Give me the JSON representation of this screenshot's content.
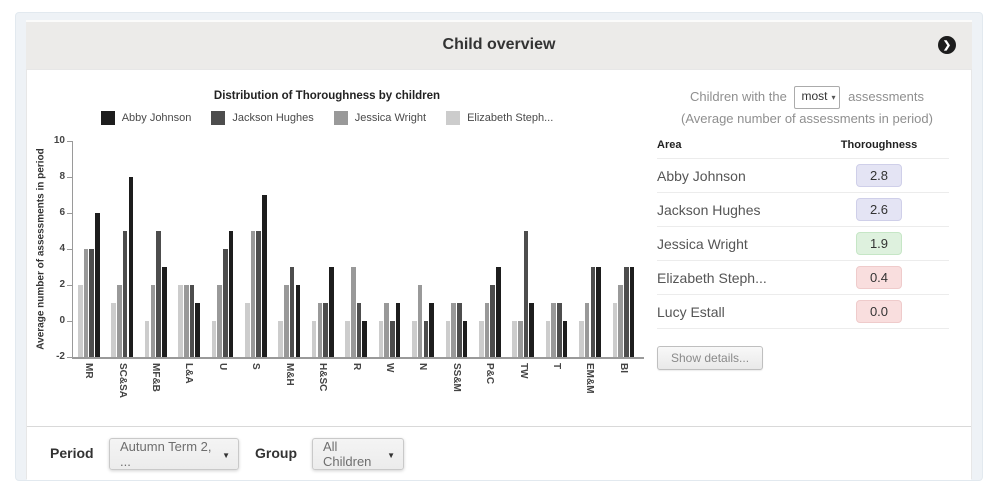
{
  "header": {
    "title": "Child overview",
    "nav_icon": "chevron-right-circle"
  },
  "chart_data": {
    "type": "bar",
    "title": "Distribution of Thoroughness by children",
    "ylabel": "Average number of assessments in period",
    "ylim": [
      -2,
      10
    ],
    "yticks": [
      -2,
      0,
      2,
      4,
      6,
      8,
      10
    ],
    "grid": false,
    "legend_position": "top",
    "bar_order_note": "bars drawn lightest-to-darkest left-to-right within each group; bars rise from chart bottom (-2)",
    "categories": [
      "MR",
      "SC&SA",
      "MF&B",
      "L&A",
      "U",
      "S",
      "M&H",
      "H&SC",
      "R",
      "W",
      "N",
      "SS&M",
      "P&C",
      "TW",
      "T",
      "EM&M",
      "BI"
    ],
    "series": [
      {
        "name": "Abby Johnson",
        "color": "#1d1d1d",
        "values": [
          6,
          8,
          3,
          1,
          5,
          7,
          2,
          3,
          0,
          1,
          1,
          0,
          3,
          1,
          0,
          3,
          3
        ]
      },
      {
        "name": "Jackson Hughes",
        "color": "#4d4d4d",
        "values": [
          4,
          5,
          5,
          2,
          4,
          5,
          3,
          1,
          1,
          0,
          0,
          1,
          2,
          5,
          1,
          3,
          3
        ]
      },
      {
        "name": "Jessica Wright",
        "color": "#999999",
        "values": [
          4,
          2,
          2,
          2,
          2,
          5,
          2,
          1,
          3,
          1,
          2,
          1,
          1,
          0,
          1,
          1,
          2
        ]
      },
      {
        "name": "Elizabeth Steph...",
        "color": "#cccccc",
        "values": [
          2,
          1,
          0,
          2,
          0,
          1,
          0,
          0,
          0,
          0,
          0,
          0,
          0,
          0,
          0,
          0,
          1
        ]
      }
    ]
  },
  "side_panel": {
    "heading_prefix": "Children with the",
    "heading_select_value": "most",
    "heading_suffix": "assessments",
    "heading_line2": "(Average number of assessments in period)",
    "table": {
      "columns": [
        "Area",
        "Thoroughness"
      ],
      "rows": [
        {
          "name": "Abby Johnson",
          "value": "2.8",
          "badge": "purple"
        },
        {
          "name": "Jackson Hughes",
          "value": "2.6",
          "badge": "purple"
        },
        {
          "name": "Jessica Wright",
          "value": "1.9",
          "badge": "green"
        },
        {
          "name": "Elizabeth Steph...",
          "value": "0.4",
          "badge": "red"
        },
        {
          "name": "Lucy Estall",
          "value": "0.0",
          "badge": "red"
        }
      ]
    },
    "show_details_label": "Show details..."
  },
  "footer": {
    "period_label": "Period",
    "period_value": "Autumn Term 2, ...",
    "group_label": "Group",
    "group_value": "All Children"
  },
  "colors": {
    "panel_bg": "#eef2f6",
    "header_bar_bg": "#ecebe9",
    "accent_dark": "#1d1d1d",
    "badge_purple_bg": "#e4e4f4",
    "badge_purple_border": "#cfcfe9",
    "badge_green_bg": "#def1de",
    "badge_green_border": "#c6e6c6",
    "badge_red_bg": "#f9dede",
    "badge_red_border": "#efcbcb"
  }
}
